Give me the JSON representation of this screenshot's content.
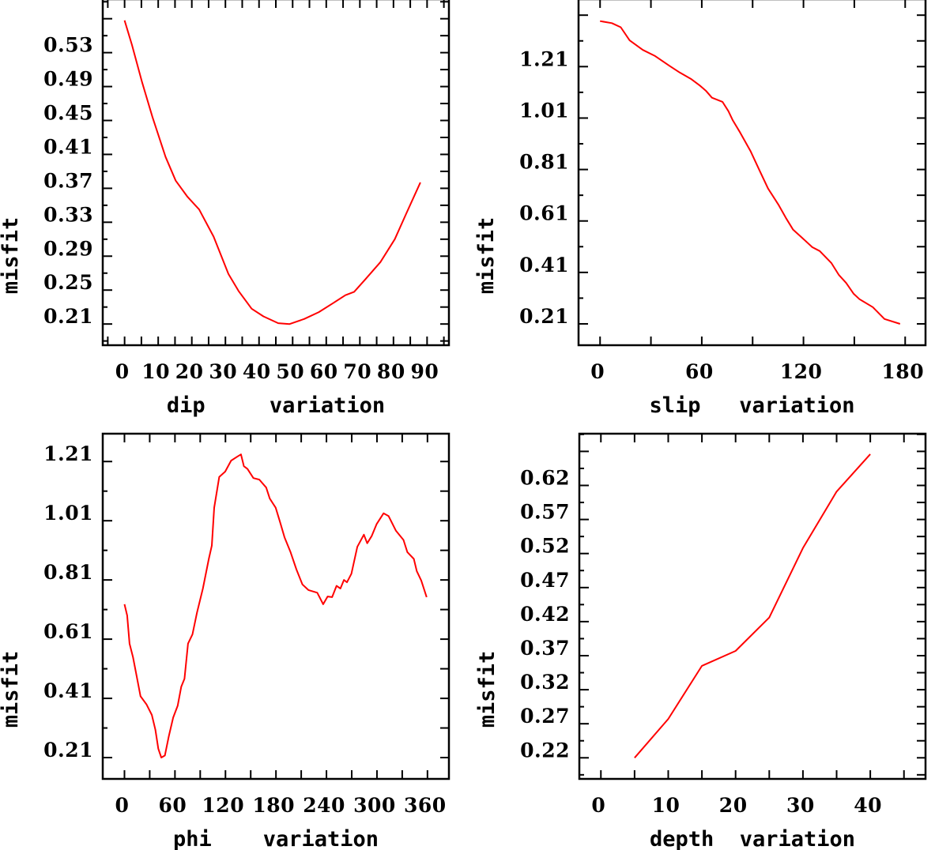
{
  "line_color": "#ff0000",
  "chart_data": [
    {
      "type": "line",
      "xlabel": "dip     variation",
      "ylabel": "misfit",
      "xlim": [
        -6.5,
        96.5
      ],
      "ylim": [
        0.185,
        0.593
      ],
      "x_major_step": 5,
      "y_minor_step": 0.02,
      "xtick_values": [
        0,
        10,
        20,
        30,
        40,
        50,
        60,
        70,
        80,
        90
      ],
      "xtick_labels": [
        "0",
        "10",
        "20",
        "30",
        "40",
        "50",
        "60",
        "70",
        "80",
        "90"
      ],
      "ytick_values": [
        0.21,
        0.25,
        0.29,
        0.33,
        0.37,
        0.41,
        0.45,
        0.49,
        0.53
      ],
      "ytick_labels": [
        "0.21",
        "0.25",
        "0.29",
        "0.33",
        "0.37",
        "0.41",
        "0.45",
        "0.49",
        "0.53"
      ],
      "x": [
        0,
        2.2,
        5.2,
        8.3,
        12.2,
        15.2,
        18.7,
        22.2,
        26.5,
        30.9,
        33.9,
        37.8,
        41.3,
        45.7,
        49.1,
        53.5,
        57.8,
        62.2,
        65.7,
        68.3,
        71.7,
        76.1,
        80.4,
        83.9,
        88.0
      ],
      "y": [
        0.568,
        0.539,
        0.495,
        0.454,
        0.407,
        0.379,
        0.36,
        0.345,
        0.313,
        0.269,
        0.249,
        0.228,
        0.219,
        0.211,
        0.21,
        0.216,
        0.224,
        0.235,
        0.244,
        0.248,
        0.263,
        0.283,
        0.31,
        0.341,
        0.377
      ]
    },
    {
      "type": "line",
      "xlabel": "slip   variation",
      "ylabel": "misfit",
      "xlim": [
        -12.7,
        192
      ],
      "ylim": [
        0.127,
        1.472
      ],
      "x_major_step": 30,
      "y_minor_step": 0.1,
      "xtick_values": [
        0,
        60,
        120,
        180
      ],
      "xtick_labels": [
        "0",
        "60",
        "120",
        "180"
      ],
      "ytick_values": [
        0.21,
        0.41,
        0.61,
        0.81,
        1.01,
        1.21
      ],
      "ytick_labels": [
        "0.21",
        "0.41",
        "0.61",
        "0.81",
        "1.01",
        "1.21"
      ],
      "x": [
        0,
        7,
        12.2,
        17.4,
        25.2,
        32.2,
        40.9,
        47,
        53.9,
        59.1,
        62.6,
        66,
        72.2,
        75.7,
        78.3,
        82.6,
        88.7,
        93.9,
        99.1,
        105.2,
        109.6,
        113.9,
        118.3,
        125.2,
        129.6,
        136.5,
        140.9,
        145.2,
        149.6,
        153,
        160.9,
        167.8,
        177
      ],
      "y": [
        1.387,
        1.379,
        1.363,
        1.312,
        1.275,
        1.252,
        1.213,
        1.187,
        1.161,
        1.135,
        1.115,
        1.089,
        1.073,
        1.037,
        1.001,
        0.954,
        0.882,
        0.809,
        0.736,
        0.674,
        0.622,
        0.576,
        0.55,
        0.508,
        0.493,
        0.446,
        0.4,
        0.369,
        0.327,
        0.306,
        0.275,
        0.229,
        0.21
      ]
    },
    {
      "type": "line",
      "xlabel": "phi    variation",
      "ylabel": "misfit",
      "xlim": [
        -25.8,
        385.5
      ],
      "ylim": [
        0.138,
        1.304
      ],
      "x_major_step": 30,
      "y_minor_step": 0.1,
      "xtick_values": [
        0,
        60,
        120,
        180,
        240,
        300,
        360
      ],
      "xtick_labels": [
        "0",
        "60",
        "120",
        "180",
        "240",
        "300",
        "360"
      ],
      "ytick_values": [
        0.21,
        0.41,
        0.61,
        0.81,
        1.01,
        1.21
      ],
      "ytick_labels": [
        "0.21",
        "0.41",
        "0.61",
        "0.81",
        "1.01",
        "1.21"
      ],
      "x": [
        0,
        3.2,
        6,
        10.2,
        14.8,
        19.1,
        26.1,
        32.5,
        36.7,
        40.2,
        43.8,
        48,
        52.6,
        57.9,
        63.2,
        67.4,
        71.3,
        75.5,
        80.8,
        86.1,
        93.2,
        100.2,
        103.8,
        106.6,
        112.6,
        119.7,
        126.7,
        133.8,
        138.4,
        141.9,
        146.1,
        153.2,
        160.2,
        168.4,
        172.6,
        179.7,
        185,
        190.2,
        197.3,
        204.4,
        211.4,
        218.5,
        229.1,
        236.1,
        241.4,
        246.7,
        252,
        256.6,
        260.8,
        264.4,
        269.6,
        276.7,
        284.5,
        288.4,
        293.7,
        299.7,
        307.8,
        313.8,
        322.6,
        331.5,
        336.1,
        343.8,
        347.3,
        352.6,
        359
      ],
      "y": [
        0.728,
        0.69,
        0.595,
        0.549,
        0.481,
        0.417,
        0.39,
        0.354,
        0.304,
        0.24,
        0.21,
        0.217,
        0.281,
        0.345,
        0.385,
        0.449,
        0.476,
        0.595,
        0.626,
        0.699,
        0.781,
        0.881,
        0.926,
        1.054,
        1.158,
        1.176,
        1.213,
        1.226,
        1.234,
        1.194,
        1.185,
        1.154,
        1.149,
        1.122,
        1.085,
        1.054,
        1.004,
        0.954,
        0.904,
        0.845,
        0.795,
        0.776,
        0.767,
        0.728,
        0.754,
        0.752,
        0.79,
        0.781,
        0.81,
        0.802,
        0.831,
        0.922,
        0.963,
        0.934,
        0.958,
        0.999,
        1.035,
        1.026,
        0.976,
        0.945,
        0.904,
        0.881,
        0.84,
        0.808,
        0.752
      ]
    },
    {
      "type": "line",
      "xlabel": "depth  variation",
      "ylabel": "misfit",
      "xlim": [
        -3.2,
        48.2
      ],
      "ylim": [
        0.189,
        0.696
      ],
      "x_major_step": 5,
      "y_minor_step": 0.025,
      "xtick_values": [
        0,
        10,
        20,
        30,
        40
      ],
      "xtick_labels": [
        "0",
        "10",
        "20",
        "30",
        "40"
      ],
      "ytick_values": [
        0.22,
        0.27,
        0.32,
        0.37,
        0.42,
        0.47,
        0.52,
        0.57,
        0.62
      ],
      "ytick_labels": [
        "0.22",
        "0.27",
        "0.32",
        "0.37",
        "0.42",
        "0.47",
        "0.52",
        "0.57",
        "0.62"
      ],
      "x": [
        5,
        10,
        15,
        20,
        25,
        30,
        35,
        40
      ],
      "y": [
        0.22,
        0.277,
        0.355,
        0.377,
        0.426,
        0.528,
        0.611,
        0.666
      ]
    }
  ]
}
